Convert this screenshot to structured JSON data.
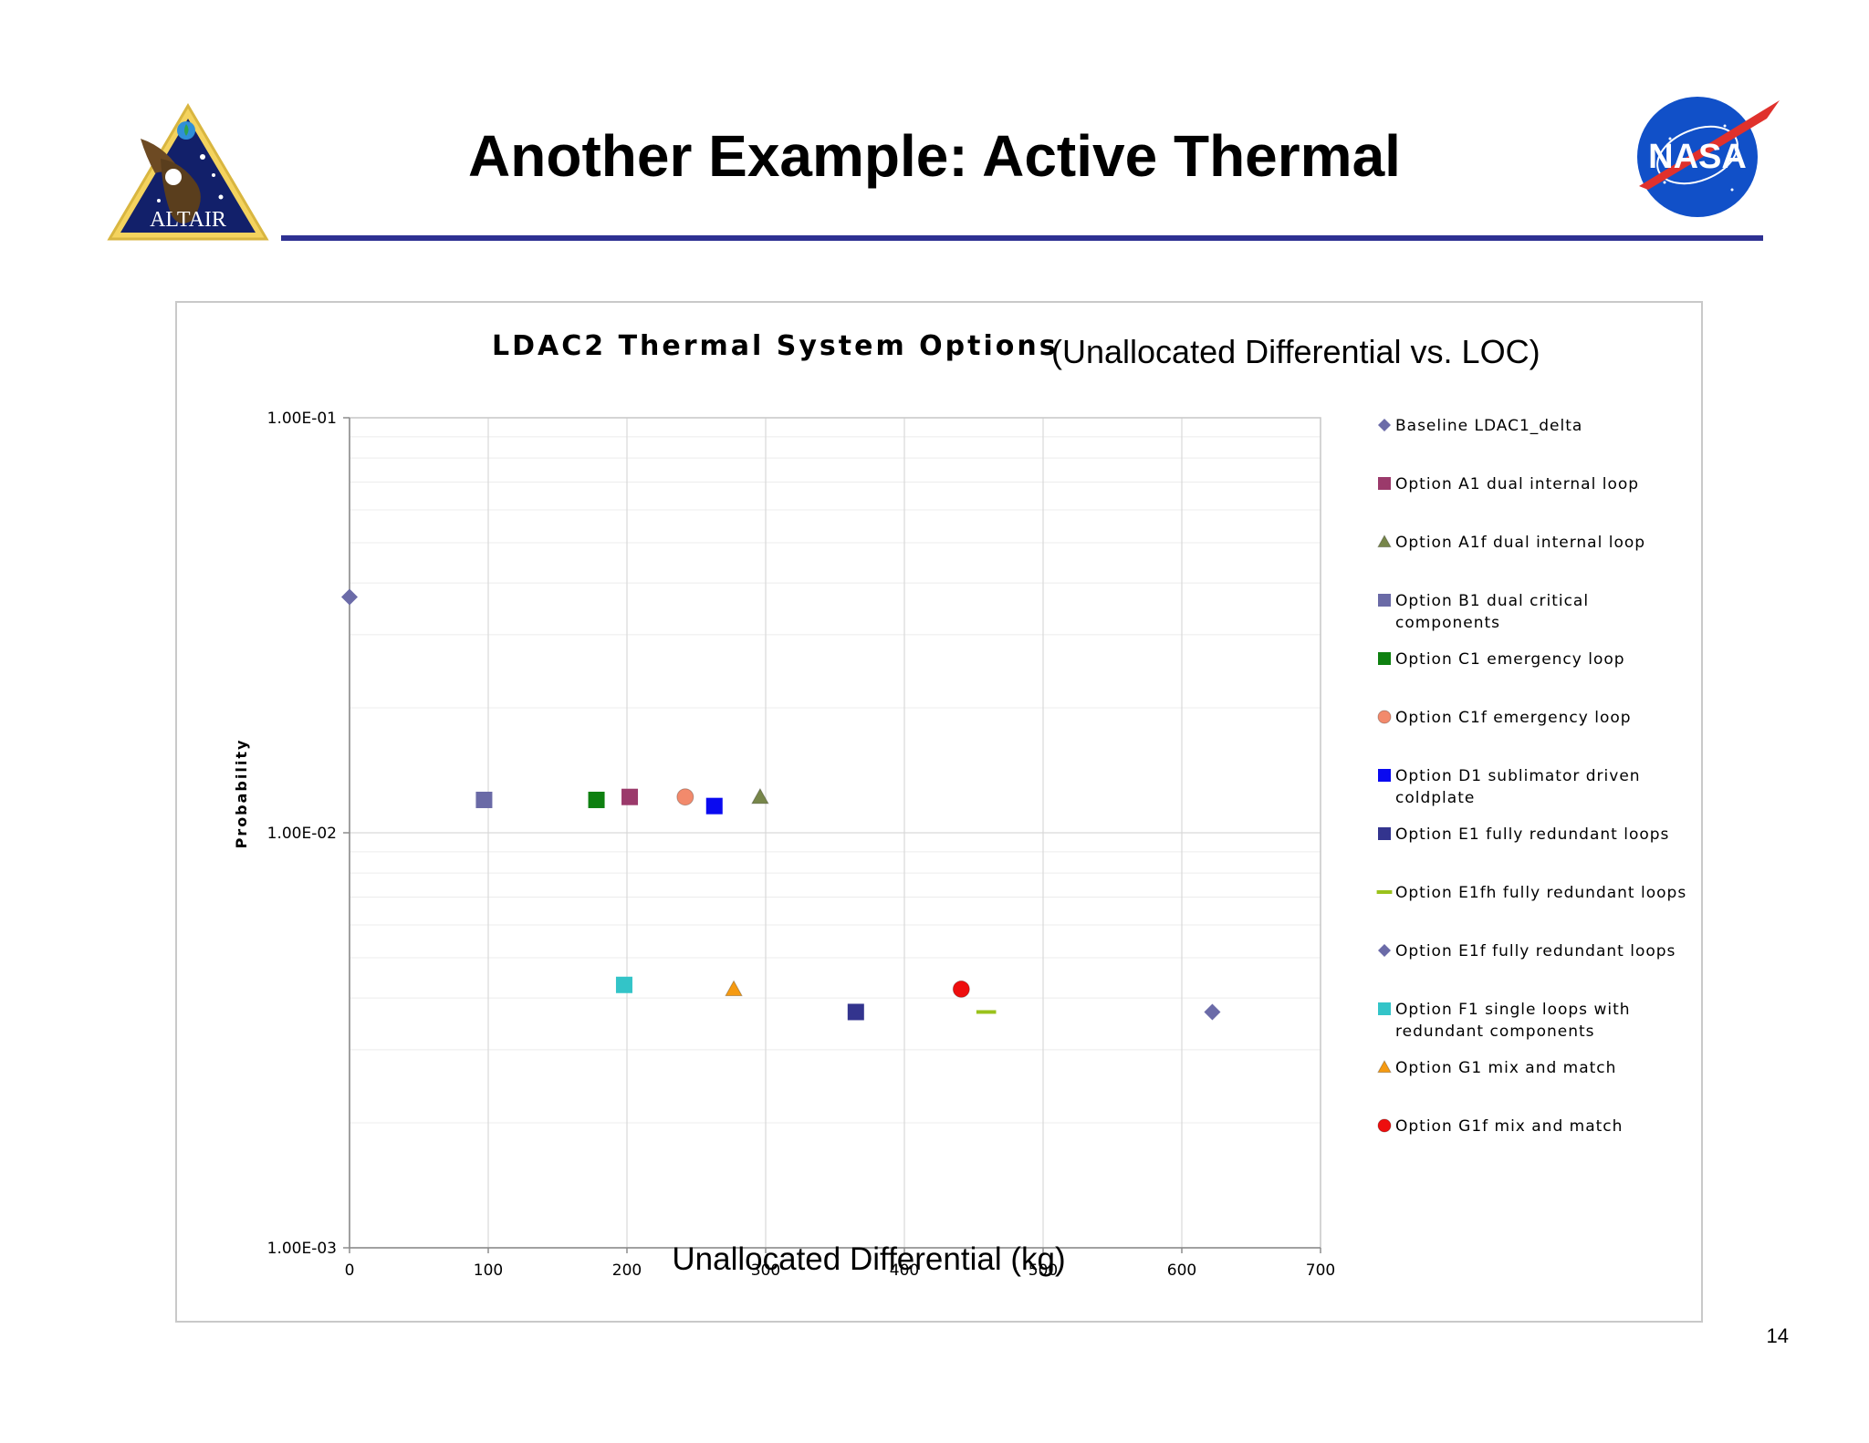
{
  "slide": {
    "title": "Another Example: Active Thermal",
    "page_number": "14",
    "logos": {
      "left": {
        "text": "ALTAIR",
        "icon": "altair-mission-patch"
      },
      "right": {
        "text": "NASA",
        "icon": "nasa-meatball"
      }
    }
  },
  "colors": {
    "title_rule": "#2e3192",
    "gridline": "#d9d9d9",
    "minor_gridline": "#ececec"
  },
  "chart_data": {
    "type": "scatter",
    "title": "LDAC2 Thermal System Options",
    "subtitle": "(Unallocated Differential vs. LOC)",
    "xlabel": "Unallocated Differential (kg)",
    "ylabel": "Probability",
    "xlim": [
      0,
      700
    ],
    "ylim": [
      0.001,
      0.1
    ],
    "y_scale": "log",
    "x_ticks": [
      "0",
      "100",
      "200",
      "300",
      "400",
      "500",
      "600",
      "700"
    ],
    "y_ticks": [
      "1.00E-01",
      "1.00E-02",
      "1.00E-03"
    ],
    "grid": true,
    "legend_position": "right",
    "series": [
      {
        "name": "Baseline LDAC1_delta",
        "marker": "diamond",
        "color": "#6b6ba8",
        "x": 0,
        "y": 0.037
      },
      {
        "name": "Option A1 dual internal loop",
        "marker": "square",
        "color": "#9b3a6b",
        "x": 202,
        "y": 0.0122
      },
      {
        "name": "Option A1f dual internal loop",
        "marker": "triangle",
        "color": "#77864a",
        "x": 296,
        "y": 0.0122
      },
      {
        "name": "Option B1 dual critical components",
        "marker": "square",
        "color": "#6a6aa6",
        "x": 97,
        "y": 0.012
      },
      {
        "name": "Option C1 emergency loop",
        "marker": "square",
        "color": "#0e8010",
        "x": 178,
        "y": 0.012
      },
      {
        "name": "Option C1f emergency loop",
        "marker": "circle",
        "color": "#f28a6c",
        "x": 242,
        "y": 0.0122
      },
      {
        "name": "Option D1 sublimator driven coldplate",
        "marker": "square",
        "color": "#0a0af0",
        "x": 263,
        "y": 0.0116
      },
      {
        "name": "Option E1 fully redundant loops",
        "marker": "square",
        "color": "#33348e",
        "x": 365,
        "y": 0.0037
      },
      {
        "name": "Option E1fh fully redundant loops",
        "marker": "dash",
        "color": "#9ac21b",
        "x": 459,
        "y": 0.0037
      },
      {
        "name": "Option E1f fully redundant loops",
        "marker": "diamond",
        "color": "#6b6ba8",
        "x": 622,
        "y": 0.0037
      },
      {
        "name": "Option F1 single loops with redundant components",
        "marker": "square",
        "color": "#33c4c8",
        "x": 198,
        "y": 0.0043
      },
      {
        "name": "Option G1 mix and match",
        "marker": "triangle",
        "color": "#f59a12",
        "x": 277,
        "y": 0.0042
      },
      {
        "name": "Option G1f mix and match",
        "marker": "circle",
        "color": "#ee0e0e",
        "x": 441,
        "y": 0.0042
      }
    ]
  }
}
